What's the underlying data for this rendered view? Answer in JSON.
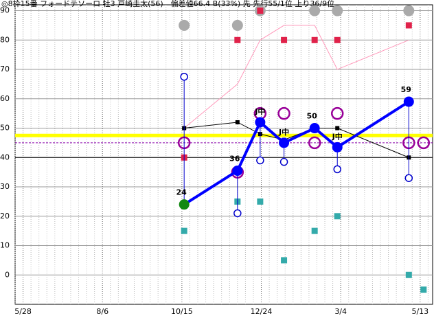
{
  "chart_data": {
    "type": "racing-form",
    "title": "◎8枠15番 フォードテソーロ 牡3 戸崎圭太(56)　偏差値66.4 B(33%) 先 先行55/1位 上り36/9位",
    "x": [
      142,
      189,
      209,
      230,
      257,
      277,
      340,
      353
    ],
    "xlim": [
      -7,
      361
    ],
    "xticks": [
      {
        "value": 0,
        "label": "5/28"
      },
      {
        "value": 70,
        "label": "8/6"
      },
      {
        "value": 140,
        "label": "10/15"
      },
      {
        "value": 210,
        "label": "12/24"
      },
      {
        "value": 280,
        "label": "3/4"
      },
      {
        "value": 350,
        "label": "5/13"
      }
    ],
    "ylim": [
      -10,
      92
    ],
    "yticks": [
      0,
      10,
      20,
      30,
      40,
      50,
      60,
      70,
      80,
      90
    ],
    "grid": true,
    "hlines": [
      {
        "value": 40,
        "color": "#000000",
        "style": "solid"
      },
      {
        "value": 47.5,
        "color": "#ffff00",
        "style": "thick"
      },
      {
        "value": 45,
        "color": "#8800aa",
        "style": "dashed"
      }
    ],
    "series": [
      {
        "kind": "circle",
        "color": "#aaaaaa",
        "values": [
          85,
          85,
          90,
          null,
          90,
          90,
          90,
          null
        ]
      },
      {
        "kind": "square",
        "color": "#e0224a",
        "values": [
          40,
          80,
          90,
          80,
          80,
          80,
          85,
          null
        ]
      },
      {
        "kind": "line",
        "color": "#ff99bb",
        "values": [
          50,
          65,
          80,
          85,
          85,
          70,
          80,
          null
        ]
      },
      {
        "kind": "line-square",
        "color": "#000000",
        "values": [
          50,
          52,
          48,
          46,
          50,
          50,
          40,
          null
        ]
      },
      {
        "kind": "square",
        "color": "#33aaaa",
        "values": [
          15,
          25,
          25,
          5,
          15,
          20,
          0,
          -5
        ]
      },
      {
        "kind": "ring",
        "color": "#990099",
        "values": [
          45,
          35,
          55,
          55,
          45,
          55,
          45,
          45
        ]
      },
      {
        "kind": "range",
        "color": "#0000cc",
        "values": [
          67.5,
          21,
          39,
          38.5,
          null,
          36,
          33,
          null
        ]
      },
      {
        "kind": "main",
        "color": "#0000ff",
        "highlight_color": "#118811",
        "values": [
          24,
          35.5,
          52,
          45,
          50,
          43.5,
          59,
          null
        ],
        "value_labels": [
          "24",
          "36",
          null,
          null,
          "50",
          null,
          "59",
          null
        ],
        "point_notes": [
          null,
          null,
          "J中",
          "J中",
          null,
          "J中",
          null,
          null
        ]
      }
    ]
  }
}
